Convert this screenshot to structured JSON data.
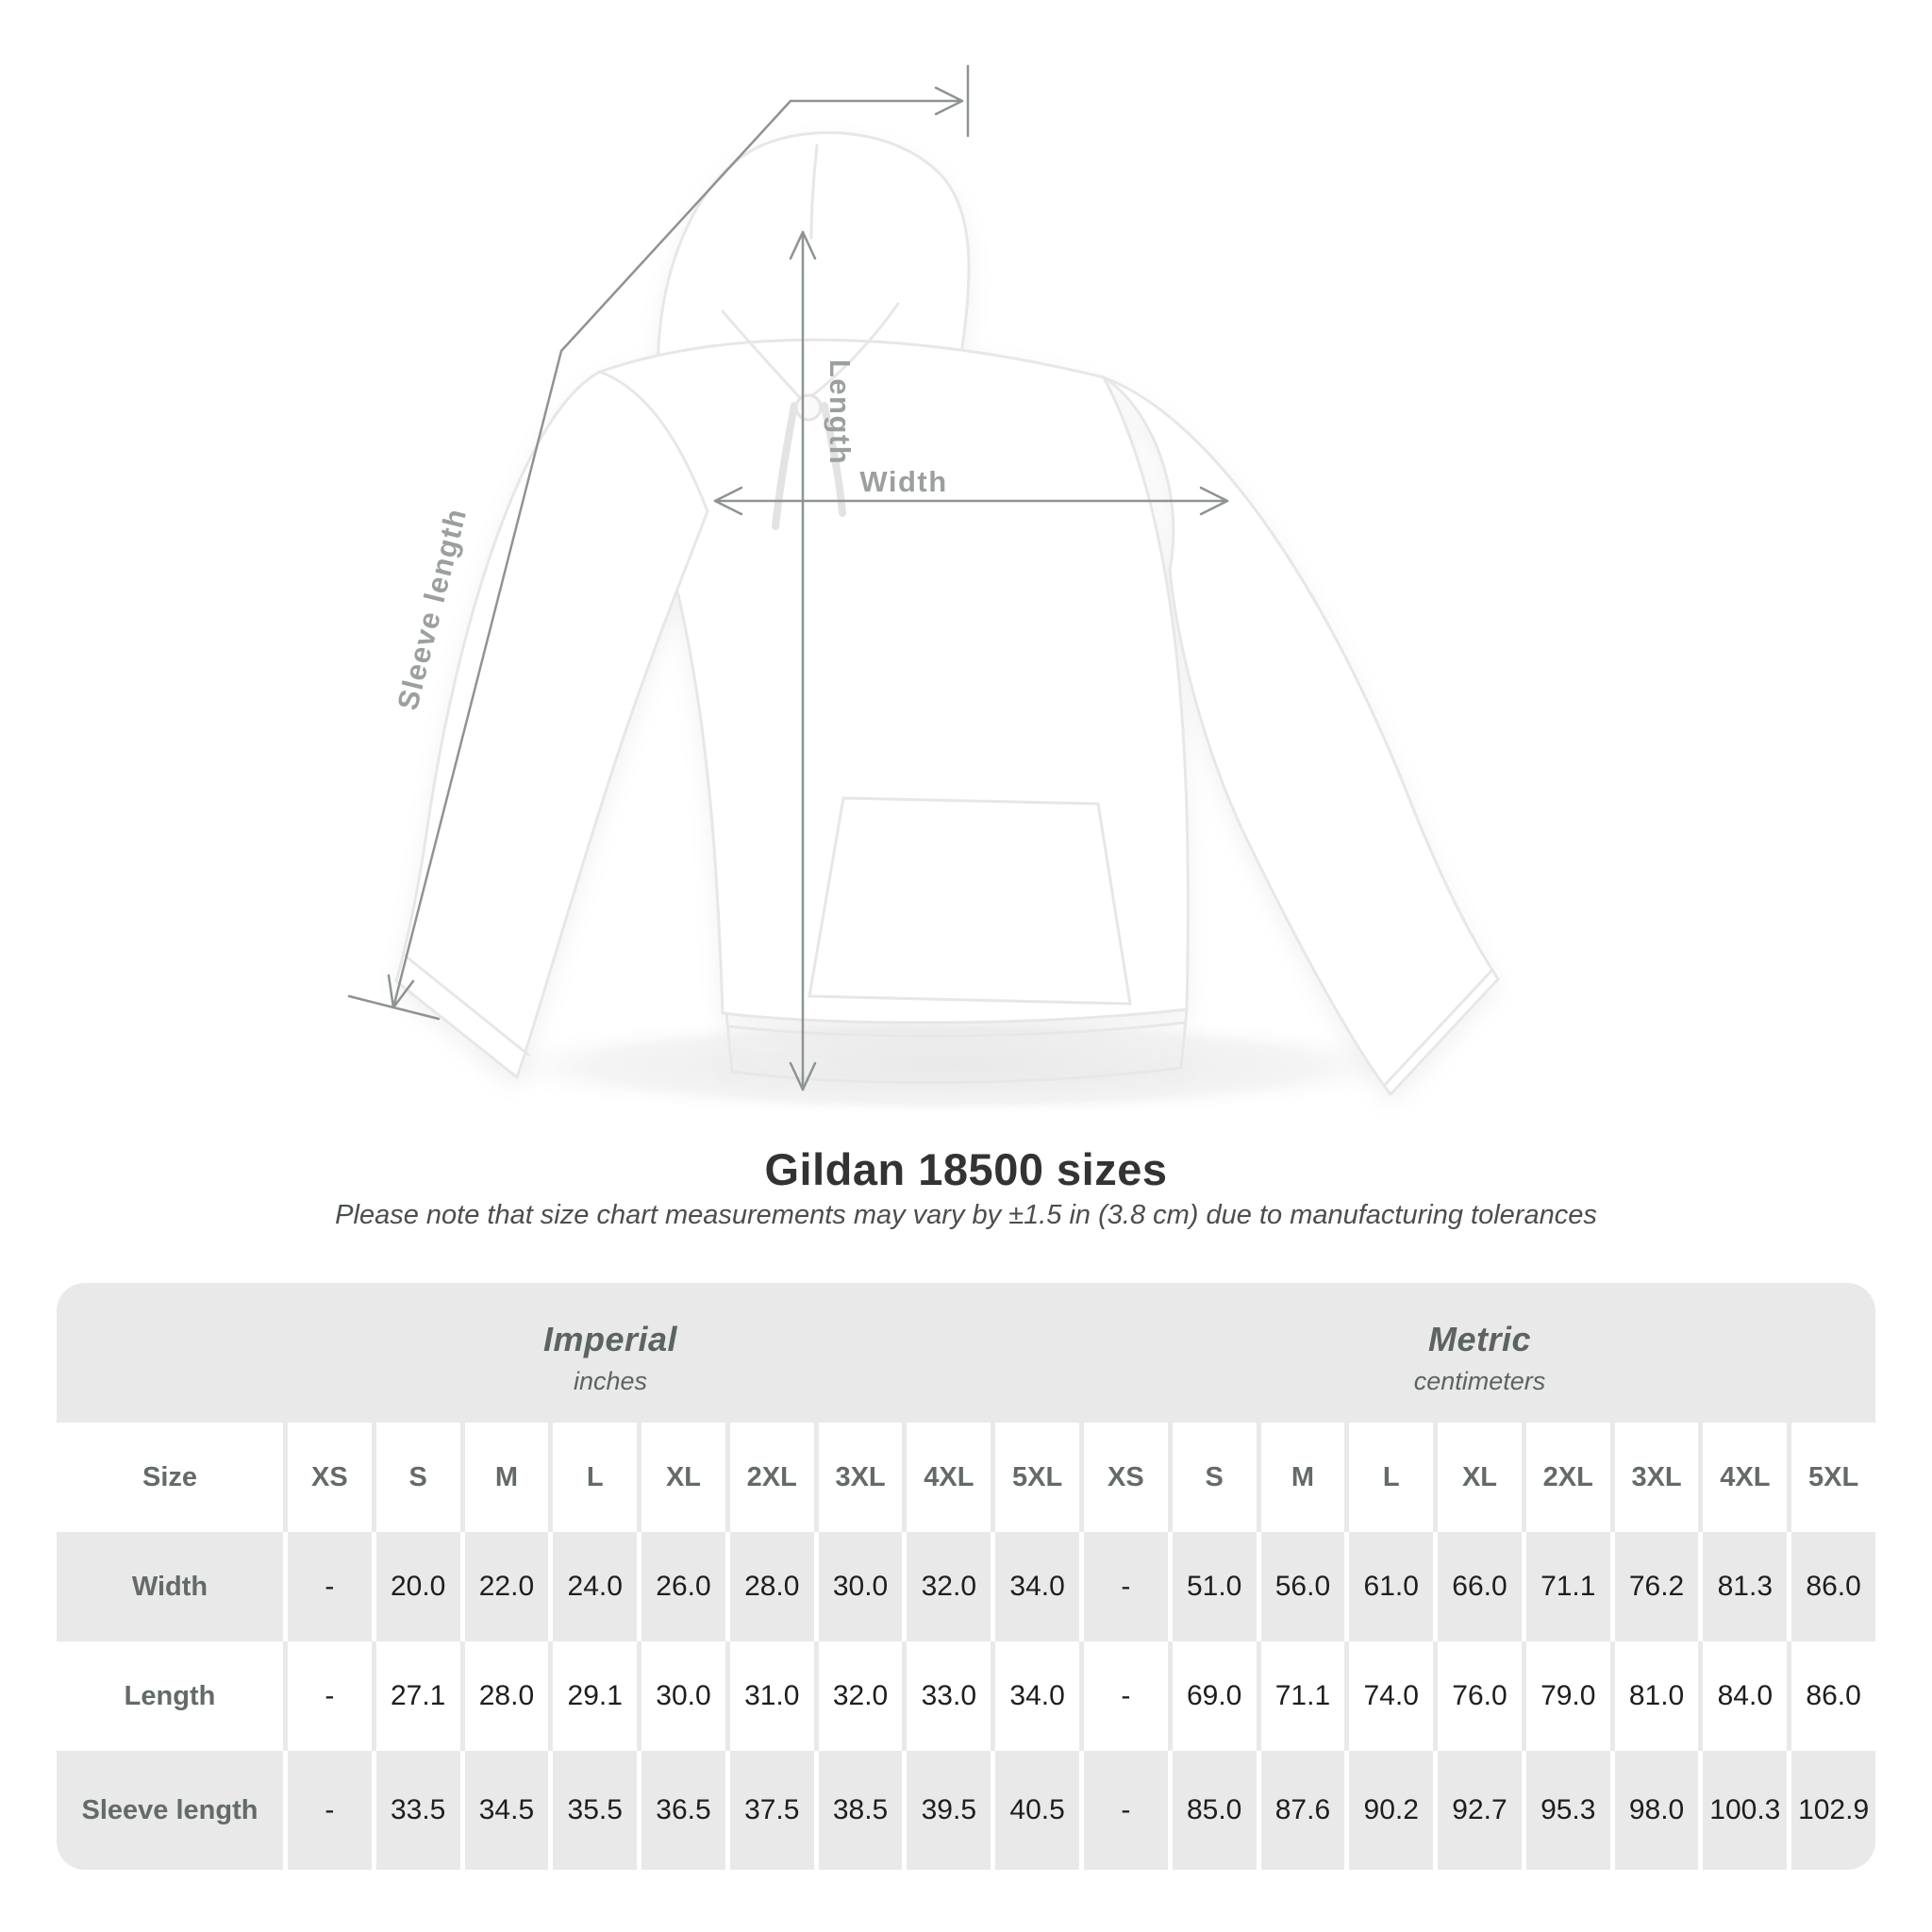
{
  "title": "Gildan 18500 sizes",
  "subtitle": "Please note that size chart measurements may vary by ±1.5 in (3.8 cm) due to manufacturing tolerances",
  "diagram": {
    "labels": {
      "sleeve_length": "Sleeve length",
      "length": "Length",
      "width": "Width"
    }
  },
  "colors": {
    "table_stripe": "#e9e9e9",
    "arrow_gray": "#8e9393",
    "diagram_label_gray": "#9b9fa0",
    "title_dark": "#333333"
  },
  "chart_data": {
    "type": "table",
    "title": "Gildan 18500 sizes",
    "subtitle": "Please note that size chart measurements may vary by ±1.5 in (3.8 cm) due to manufacturing tolerances",
    "corner_label": "Size",
    "groups": [
      {
        "name": "Imperial",
        "unit": "inches"
      },
      {
        "name": "Metric",
        "unit": "centimeters"
      }
    ],
    "sizes": [
      "XS",
      "S",
      "M",
      "L",
      "XL",
      "2XL",
      "3XL",
      "4XL",
      "5XL"
    ],
    "rows": [
      {
        "label": "Width",
        "imperial": [
          "-",
          "20.0",
          "22.0",
          "24.0",
          "26.0",
          "28.0",
          "30.0",
          "32.0",
          "34.0"
        ],
        "metric": [
          "-",
          "51.0",
          "56.0",
          "61.0",
          "66.0",
          "71.1",
          "76.2",
          "81.3",
          "86.0"
        ]
      },
      {
        "label": "Length",
        "imperial": [
          "-",
          "27.1",
          "28.0",
          "29.1",
          "30.0",
          "31.0",
          "32.0",
          "33.0",
          "34.0"
        ],
        "metric": [
          "-",
          "69.0",
          "71.1",
          "74.0",
          "76.0",
          "79.0",
          "81.0",
          "84.0",
          "86.0"
        ]
      },
      {
        "label": "Sleeve length",
        "imperial": [
          "-",
          "33.5",
          "34.5",
          "35.5",
          "36.5",
          "37.5",
          "38.5",
          "39.5",
          "40.5"
        ],
        "metric": [
          "-",
          "85.0",
          "87.6",
          "90.2",
          "92.7",
          "95.3",
          "98.0",
          "100.3",
          "102.9"
        ]
      }
    ]
  }
}
